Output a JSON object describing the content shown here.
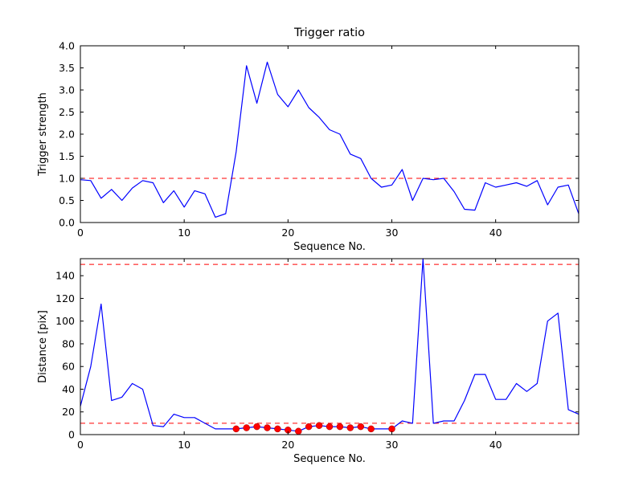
{
  "figure": {
    "background": "#ffffff",
    "axis_color": "#000000",
    "line_color": "#0000ff",
    "threshold_color": "#ff0000",
    "marker_color": "#ff0000"
  },
  "chart_data": [
    {
      "type": "line",
      "title": "Trigger ratio",
      "xlabel": "Sequence No.",
      "ylabel": "Trigger strength",
      "xlim": [
        0,
        48
      ],
      "ylim": [
        0,
        4.0
      ],
      "grid": false,
      "legend": null,
      "xticks": [
        0,
        10,
        20,
        30,
        40
      ],
      "xticklabels": [
        "0",
        "10",
        "20",
        "30",
        "40"
      ],
      "yticks": [
        0,
        0.5,
        1.0,
        1.5,
        2.0,
        2.5,
        3.0,
        3.5,
        4.0
      ],
      "yticklabels": [
        "0.0",
        "0.5",
        "1.0",
        "1.5",
        "2.0",
        "2.5",
        "3.0",
        "3.5",
        "4.0"
      ],
      "hlines": [
        {
          "y": 1.0,
          "color": "#ff0000",
          "style": "dashed",
          "name": "trigger-threshold"
        }
      ],
      "series": [
        {
          "name": "trigger-strength",
          "color": "#0000ff",
          "x": [
            0,
            1,
            2,
            3,
            4,
            5,
            6,
            7,
            8,
            9,
            10,
            11,
            12,
            13,
            14,
            15,
            16,
            17,
            18,
            19,
            20,
            21,
            22,
            23,
            24,
            25,
            26,
            27,
            28,
            29,
            30,
            31,
            32,
            33,
            34,
            35,
            36,
            37,
            38,
            39,
            40,
            41,
            42,
            43,
            44,
            45,
            46,
            47,
            48
          ],
          "y": [
            0.97,
            0.95,
            0.55,
            0.75,
            0.5,
            0.78,
            0.95,
            0.9,
            0.45,
            0.72,
            0.35,
            0.72,
            0.65,
            0.12,
            0.2,
            1.6,
            3.55,
            2.7,
            3.63,
            2.9,
            2.62,
            3.0,
            2.6,
            2.38,
            2.1,
            2.0,
            1.55,
            1.45,
            1.0,
            0.8,
            0.85,
            1.2,
            0.5,
            1.0,
            0.97,
            1.0,
            0.7,
            0.3,
            0.28,
            0.9,
            0.8,
            0.85,
            0.9,
            0.82,
            0.95,
            0.4,
            0.8,
            0.85,
            0.2
          ]
        }
      ]
    },
    {
      "type": "line",
      "title": "",
      "xlabel": "Sequence No.",
      "ylabel": "Distance [pix]",
      "xlim": [
        0,
        48
      ],
      "ylim": [
        0,
        155
      ],
      "grid": false,
      "legend": null,
      "xticks": [
        0,
        10,
        20,
        30,
        40
      ],
      "xticklabels": [
        "0",
        "10",
        "20",
        "30",
        "40"
      ],
      "yticks": [
        0,
        20,
        40,
        60,
        80,
        100,
        120,
        140
      ],
      "yticklabels": [
        "0",
        "20",
        "40",
        "60",
        "80",
        "100",
        "120",
        "140"
      ],
      "hlines": [
        {
          "y": 150,
          "color": "#ff0000",
          "style": "dashed",
          "name": "upper-distance-threshold"
        },
        {
          "y": 10,
          "color": "#ff0000",
          "style": "dashed",
          "name": "lower-distance-threshold"
        }
      ],
      "series": [
        {
          "name": "distance",
          "color": "#0000ff",
          "x": [
            0,
            1,
            2,
            3,
            4,
            5,
            6,
            7,
            8,
            9,
            10,
            11,
            12,
            13,
            14,
            15,
            16,
            17,
            18,
            19,
            20,
            21,
            22,
            23,
            24,
            25,
            26,
            27,
            28,
            29,
            30,
            31,
            32,
            33,
            34,
            35,
            36,
            37,
            38,
            39,
            40,
            41,
            42,
            43,
            44,
            45,
            46,
            47,
            48
          ],
          "y": [
            25,
            60,
            115,
            30,
            33,
            45,
            40,
            8,
            7,
            18,
            15,
            15,
            10,
            5,
            5,
            5,
            6,
            7,
            6,
            5,
            4,
            3,
            7,
            8,
            7,
            7,
            6,
            7,
            5,
            5,
            5,
            12,
            10,
            155,
            10,
            12,
            12,
            30,
            53,
            53,
            31,
            31,
            45,
            38,
            45,
            100,
            107,
            22,
            18
          ]
        }
      ],
      "markers": [
        {
          "name": "triggered-points",
          "color": "#ff0000",
          "x": [
            15,
            16,
            17,
            18,
            19,
            20,
            21,
            22,
            23,
            24,
            25,
            26,
            27,
            28,
            30
          ],
          "y": [
            5,
            6,
            7,
            6,
            5,
            4,
            3,
            7,
            8,
            7,
            7,
            6,
            7,
            5,
            5
          ]
        }
      ]
    }
  ]
}
